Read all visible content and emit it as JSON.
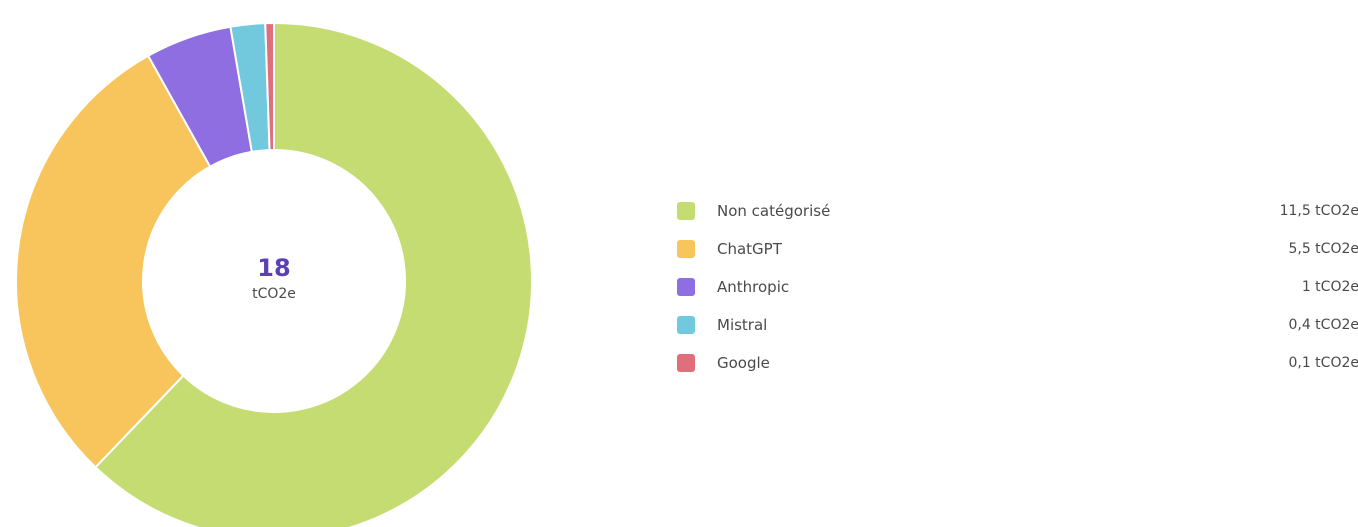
{
  "chart_data": {
    "type": "pie",
    "variant": "donut",
    "center_total": "18",
    "center_unit": "tCO2e",
    "start_angle_deg": 0,
    "direction": "clockwise",
    "slices": [
      {
        "label": "Non catégorisé",
        "value": 11.5,
        "display_value": "11,5 tCO2e",
        "color": "#c5dc72"
      },
      {
        "label": "ChatGPT",
        "value": 5.5,
        "display_value": "5,5 tCO2e",
        "color": "#f7c55c"
      },
      {
        "label": "Anthropic",
        "value": 1,
        "display_value": "1 tCO2e",
        "color": "#8e6ee0"
      },
      {
        "label": "Mistral",
        "value": 0.4,
        "display_value": "0,4 tCO2e",
        "color": "#72c8dd"
      },
      {
        "label": "Google",
        "value": 0.1,
        "display_value": "0,1 tCO2e",
        "color": "#de6f7b"
      }
    ],
    "legend_placement": "right"
  }
}
